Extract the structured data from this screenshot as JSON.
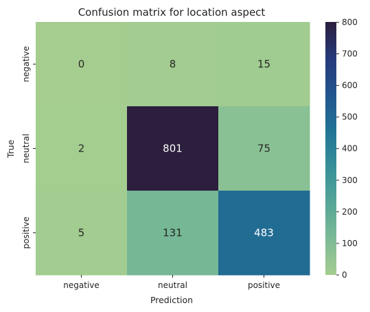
{
  "chart_data": {
    "type": "heatmap",
    "title": "Confusion matrix for location aspect",
    "xlabel": "Prediction",
    "ylabel": "True",
    "x_categories": [
      "negative",
      "neutral",
      "positive"
    ],
    "y_categories": [
      "negative",
      "neutral",
      "positive"
    ],
    "values": [
      [
        0,
        8,
        15
      ],
      [
        2,
        801,
        75
      ],
      [
        5,
        131,
        483
      ]
    ],
    "colorbar": {
      "min": 0,
      "max": 801,
      "ticks": [
        0,
        100,
        200,
        300,
        400,
        500,
        600,
        700,
        800
      ],
      "colormap": "crest",
      "stops": [
        "#a5cd90",
        "#7cba96",
        "#55a597",
        "#368e98",
        "#217395",
        "#22558e",
        "#263a7a",
        "#2c1e3d"
      ]
    }
  }
}
